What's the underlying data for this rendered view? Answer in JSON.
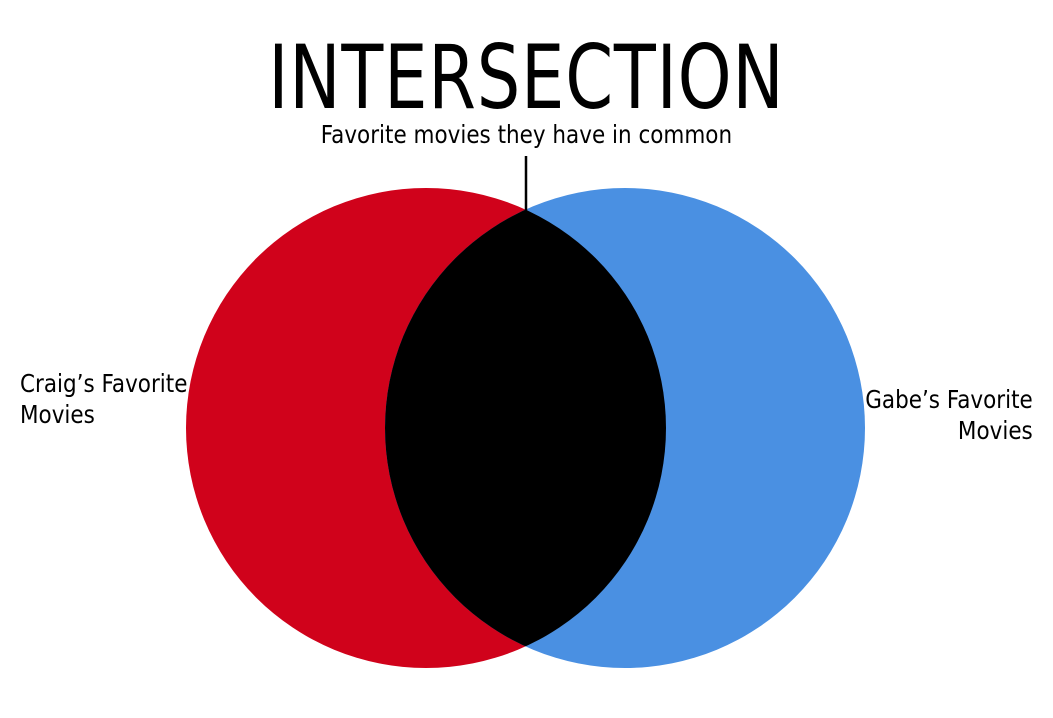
{
  "title": "INTERSECTION",
  "subtitle": "Favorite movies they have in common",
  "sets": [
    {
      "label_line1": "Craig’s Favorite",
      "label_line2": "Movies",
      "color": "#d0021b"
    },
    {
      "label_line1": "Gabe’s Favorite",
      "label_line2": "Movies",
      "color": "#4a90e2"
    }
  ],
  "intersection": {
    "color": "#000000"
  }
}
